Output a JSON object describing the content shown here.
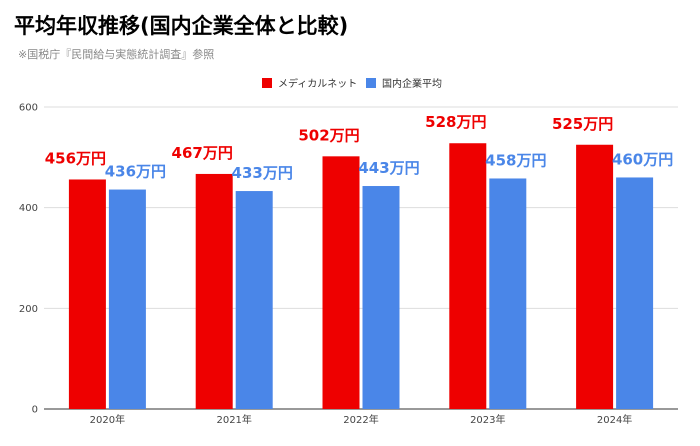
{
  "title": "平均年収推移(国内企業全体と比較)",
  "subtitle": "※国税庁『民間給与実態統計調査』参照",
  "colors": {
    "company": "#ee0000",
    "national": "#4a86e8",
    "grid": "#dddddd",
    "axis": "#333333"
  },
  "chart_data": {
    "type": "bar",
    "categories": [
      "2020年",
      "2021年",
      "2022年",
      "2023年",
      "2024年"
    ],
    "series": [
      {
        "name": "メディカルネット",
        "values": [
          456,
          467,
          502,
          528,
          525
        ],
        "labels": [
          "456万円",
          "467万円",
          "502万円",
          "528万円",
          "525万円"
        ]
      },
      {
        "name": "国内企業平均",
        "values": [
          436,
          433,
          443,
          458,
          460
        ],
        "labels": [
          "436万円",
          "433万円",
          "443万円",
          "458万円",
          "460万円"
        ]
      }
    ],
    "ylim": [
      0,
      600
    ],
    "yticks": [
      0,
      200,
      400,
      600
    ],
    "grid": true,
    "legend_position": "top-center"
  }
}
